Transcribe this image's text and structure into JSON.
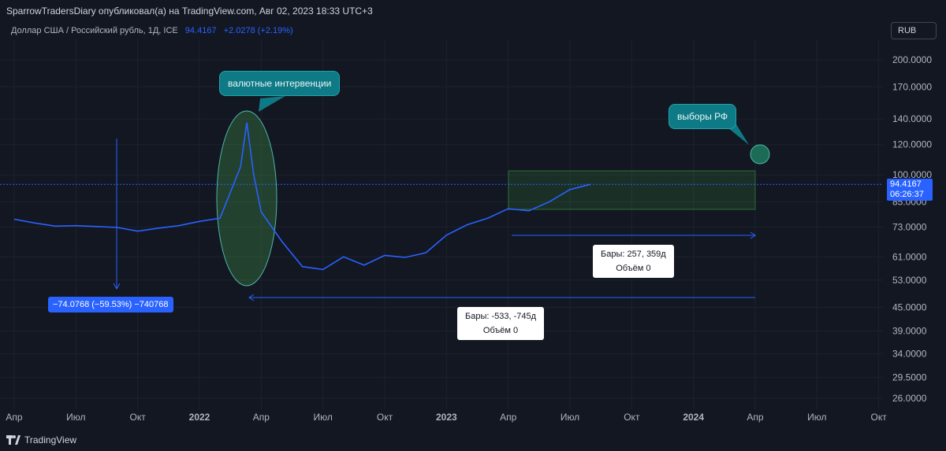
{
  "header": {
    "publisher_line": "SparrowTradersDiary опубликовал(а) на TradingView.com, Авг 02, 2023 18:33 UTC+3"
  },
  "symbol": {
    "name": "Доллар США / Российский рубль, 1Д, ICE",
    "price": "94.4167",
    "change": "+2.0278 (+2.19%)"
  },
  "currency_button": "RUB",
  "price_axis": {
    "ticks": [
      "200.0000",
      "170.0000",
      "140.0000",
      "120.0000",
      "100.0000",
      "85.0000",
      "73.0000",
      "61.0000",
      "53.0000",
      "45.0000",
      "39.0000",
      "34.0000",
      "29.5000",
      "26.0000"
    ],
    "current_price": "94.4167",
    "countdown": "06:26:37"
  },
  "time_axis": {
    "ticks": [
      "Апр",
      "Июл",
      "Окт",
      "2022",
      "Апр",
      "Июл",
      "Окт",
      "2023",
      "Апр",
      "Июл",
      "Окт",
      "2024",
      "Апр",
      "Июл",
      "Окт"
    ]
  },
  "annotations": {
    "interventions_callout": "валютные интервенции",
    "elections_callout": "выборы РФ",
    "measure_left_label": "−74.0768 (−59.53%) −740768",
    "range_short_bars": "Бары: 257, 359д",
    "range_short_volume": "Объём 0",
    "range_long_bars": "Бары: -533, -745д",
    "range_long_volume": "Объём 0"
  },
  "footer": {
    "brand": "TradingView"
  },
  "colors": {
    "background": "#131722",
    "line": "#2962ff",
    "teal": "#0e7a85",
    "zone_green": "#1e4d2b"
  },
  "chart_data": {
    "type": "line",
    "title": "Доллар США / Российский рубль, 1Д, ICE",
    "xlabel": "",
    "ylabel": "",
    "y_scale": "log",
    "ylim": [
      24.5,
      250
    ],
    "x": [
      "2021-04",
      "2021-05",
      "2021-06",
      "2021-07",
      "2021-08",
      "2021-09",
      "2021-10",
      "2021-11",
      "2021-12",
      "2022-01",
      "2022-02",
      "2022-03-01",
      "2022-03-10",
      "2022-03-20",
      "2022-04",
      "2022-05",
      "2022-06",
      "2022-07",
      "2022-08",
      "2022-09",
      "2022-10",
      "2022-11",
      "2022-12",
      "2023-01",
      "2023-02",
      "2023-03",
      "2023-04",
      "2023-05",
      "2023-06",
      "2023-07",
      "2023-08"
    ],
    "series": [
      {
        "values": [
          76.5,
          74.8,
          73.4,
          73.6,
          73.2,
          72.8,
          71.2,
          72.5,
          73.6,
          75.5,
          77.0,
          105.0,
          137.0,
          100.0,
          80.0,
          67.0,
          57.5,
          56.5,
          61.0,
          58.0,
          61.5,
          60.8,
          62.5,
          69.5,
          74.0,
          77.0,
          81.5,
          80.5,
          85.0,
          91.5,
          94.4
        ]
      }
    ]
  }
}
